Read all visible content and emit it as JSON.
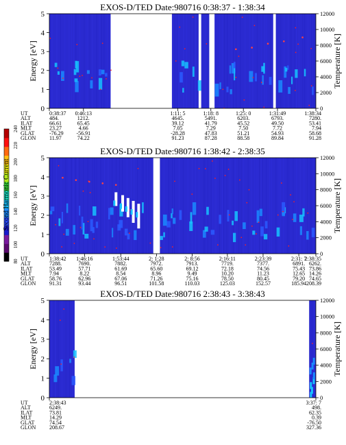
{
  "colors": {
    "background": "#2a2ad0",
    "scale": [
      "#000000",
      "#5a0a6e",
      "#7a1a9e",
      "#1a1acc",
      "#2a4aff",
      "#1a8aff",
      "#16c2ff",
      "#1ae6c8",
      "#36d836",
      "#b0e81a",
      "#f0f010",
      "#ffbe10",
      "#ff6a10",
      "#ff1010",
      "#b40000"
    ]
  },
  "colorbar": {
    "label": "Second Harmonic Current",
    "ticks": [
      "80",
      "100",
      "120",
      "140",
      "160",
      "180",
      "200",
      "220",
      "240"
    ]
  },
  "panels": [
    {
      "title": "EXOS-D/TED   Date:980716  0:38:37 - 1:38:34",
      "ylabel": "Energy [eV]",
      "ylabel2": "Temperature [K]",
      "yticks": [
        "0",
        "1",
        "2",
        "3",
        "4",
        "5"
      ],
      "y2ticks": [
        "0",
        "2000",
        "4000",
        "6000",
        "8000",
        "10000",
        "12000"
      ],
      "row_labels": [
        "UT",
        "ALT",
        "ILAT",
        "MLT",
        "GLAT",
        "GLON"
      ],
      "columns": [
        {
          "f": 0.0,
          "v": [
            "0:38:37",
            "484.",
            "66.61",
            "23.27",
            "-76.29",
            "11.97"
          ]
        },
        {
          "f": 0.128,
          "v": [
            "0:46:13",
            "1212.",
            "65.45",
            "4.66",
            "-56.91",
            "74.22"
          ]
        },
        {
          "f": 0.482,
          "v": [
            "1:11: 5",
            "4645.",
            "39.12",
            "7.05",
            "-28.28",
            "91.23"
          ]
        },
        {
          "f": 0.606,
          "v": [
            "1:18: 8",
            "5491.",
            "41.79",
            "7.29",
            "47.83",
            "87.28"
          ]
        },
        {
          "f": 0.728,
          "v": [
            "1:25: 0",
            "6203.",
            "45.52",
            "7.50",
            "51.21",
            "88.58"
          ]
        },
        {
          "f": 0.856,
          "v": [
            "1:31:49",
            "6793.",
            "49.50",
            "7.72",
            "54.93",
            "89.84"
          ]
        },
        {
          "f": 1.0,
          "v": [
            "1:38:34",
            "7280.",
            "53.41",
            "7.94",
            "58.68",
            "91.28"
          ]
        }
      ]
    },
    {
      "title": "EXOS-D/TED   Date:980716  1:38:42 - 2:38:35",
      "ylabel": "Energy [eV]",
      "ylabel2": "Temperature [K]",
      "yticks": [
        "0",
        "1",
        "2",
        "3",
        "4",
        "5"
      ],
      "y2ticks": [
        "0",
        "2000",
        "4000",
        "6000",
        "8000",
        "10000",
        "12000"
      ],
      "row_labels": [
        "UT",
        "ALT",
        "ILAT",
        "MLT",
        "GLAT",
        "GLON"
      ],
      "columns": [
        {
          "f": 0.0,
          "v": [
            "1:38:42",
            "7288.",
            "53.49",
            "7.94",
            "58.76",
            "91.31"
          ]
        },
        {
          "f": 0.132,
          "v": [
            "1:46:16",
            "7690.",
            "57.71",
            "8.22",
            "62.96",
            "93.44"
          ]
        },
        {
          "f": 0.268,
          "v": [
            "1:53:44",
            "7882.",
            "61.69",
            "8.54",
            "67.06",
            "96.51"
          ]
        },
        {
          "f": 0.402,
          "v": [
            "2: 1:28",
            "7972.",
            "65.60",
            "8.96",
            "71.26",
            "101.58"
          ]
        },
        {
          "f": 0.536,
          "v": [
            "2: 8:56",
            "7913.",
            "69.12",
            "9.49",
            "75.16",
            "110.03"
          ]
        },
        {
          "f": 0.668,
          "v": [
            "2:16:11",
            "7719.",
            "72.18",
            "10.20",
            "78.50",
            "125.03"
          ]
        },
        {
          "f": 0.802,
          "v": [
            "2:23:39",
            "7377.",
            "74.56",
            "11.23",
            "80.45",
            "152.57"
          ]
        },
        {
          "f": 0.936,
          "v": [
            "2:31: 7",
            "6891.",
            "75.43",
            "12.65",
            "79.20",
            "185.94"
          ]
        },
        {
          "f": 1.0,
          "v": [
            "2:38:35",
            "6262.",
            "73.86",
            "14.26",
            "74.65",
            "208.39"
          ]
        }
      ]
    },
    {
      "title": "EXOS-D/TED   Date:980716  2:38:43 - 3:38:43",
      "ylabel": "Energy [eV]",
      "ylabel2": "Temperature [K]",
      "yticks": [
        "0",
        "1",
        "2",
        "3",
        "4",
        "5"
      ],
      "y2ticks": [
        "0",
        "2000",
        "4000",
        "6000",
        "8000",
        "10000",
        "12000"
      ],
      "row_labels": [
        "UT",
        "ALT",
        "ILAT",
        "MLT",
        "GLAT",
        "GLON"
      ],
      "columns": [
        {
          "f": 0.0,
          "v": [
            "2:38:43",
            "6249.",
            "73.81",
            "14.29",
            "74.54",
            "208.67"
          ]
        },
        {
          "f": 1.0,
          "v": [
            "3:37: 7",
            "498.",
            "62.35",
            "0.39",
            "-76.50",
            "327.36"
          ]
        }
      ]
    }
  ],
  "chart_data": [
    {
      "type": "heatmap",
      "title": "EXOS-D/TED   Date:980716  0:38:37 - 1:38:34",
      "ylabel": "Energy [eV]",
      "ylabel2": "Temperature [K]",
      "ylim": [
        0,
        5
      ],
      "y2lim": [
        0,
        12000
      ],
      "data_segments": [
        [
          0.0,
          0.23
        ],
        [
          0.46,
          0.56
        ],
        [
          0.57,
          0.6
        ],
        [
          0.62,
          0.84
        ],
        [
          0.85,
          1.0
        ]
      ],
      "scatter": [
        [
          0.7,
          7500
        ],
        [
          0.76,
          7700
        ],
        [
          0.82,
          8200
        ],
        [
          0.88,
          8500
        ],
        [
          0.95,
          9000
        ]
      ]
    },
    {
      "type": "heatmap",
      "title": "EXOS-D/TED   Date:980716  1:38:42 - 2:38:35",
      "ylabel": "Energy [eV]",
      "ylabel2": "Temperature [K]",
      "ylim": [
        0,
        5
      ],
      "y2lim": [
        0,
        12000
      ],
      "data_segments": [
        [
          0.0,
          0.39
        ],
        [
          0.415,
          1.0
        ]
      ],
      "scatter": [
        [
          0.05,
          9500
        ],
        [
          0.1,
          9200
        ],
        [
          0.15,
          9000
        ],
        [
          0.2,
          8800
        ],
        [
          0.25,
          8600
        ]
      ]
    },
    {
      "type": "heatmap",
      "title": "EXOS-D/TED   Date:980716  2:38:43 - 3:38:43",
      "ylabel": "Energy [eV]",
      "ylabel2": "Temperature [K]",
      "ylim": [
        0,
        5
      ],
      "y2lim": [
        0,
        12000
      ],
      "data_segments": [
        [
          0.0,
          0.095
        ],
        [
          0.975,
          1.0
        ]
      ],
      "scatter": []
    }
  ]
}
